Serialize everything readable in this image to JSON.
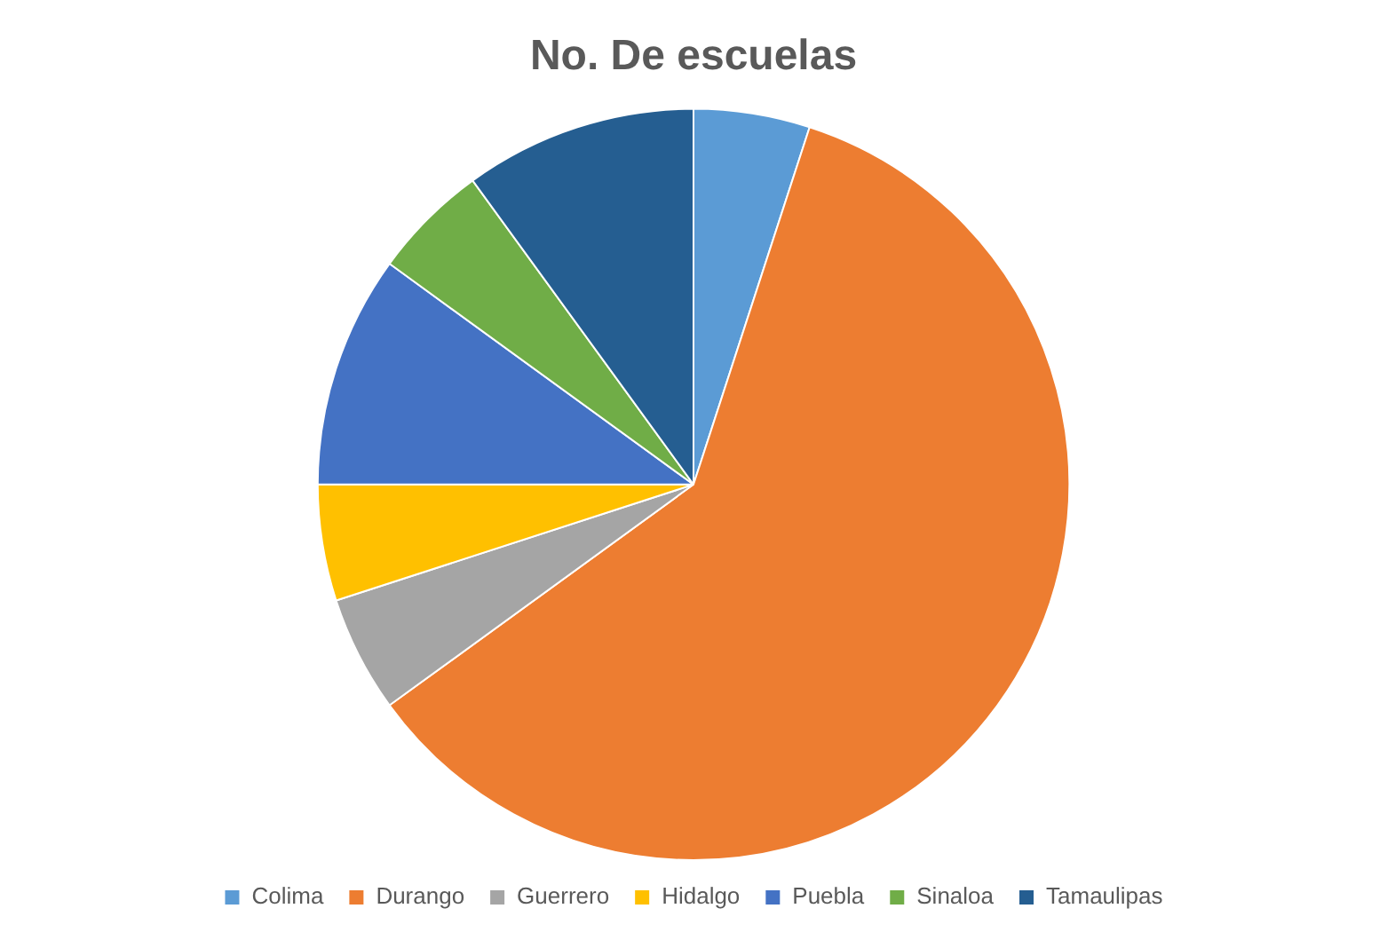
{
  "chart_data": {
    "type": "pie",
    "title": "No. De escuelas",
    "categories": [
      "Colima",
      "Durango",
      "Guerrero",
      "Hidalgo",
      "Puebla",
      "Sinaloa",
      "Tamaulipas"
    ],
    "values": [
      5,
      60,
      5,
      5,
      10,
      5,
      10
    ],
    "colors": [
      "#5b9bd5",
      "#ed7d31",
      "#a5a5a5",
      "#ffc000",
      "#4472c4",
      "#70ad47",
      "#255e91"
    ],
    "legend": "bottom"
  }
}
